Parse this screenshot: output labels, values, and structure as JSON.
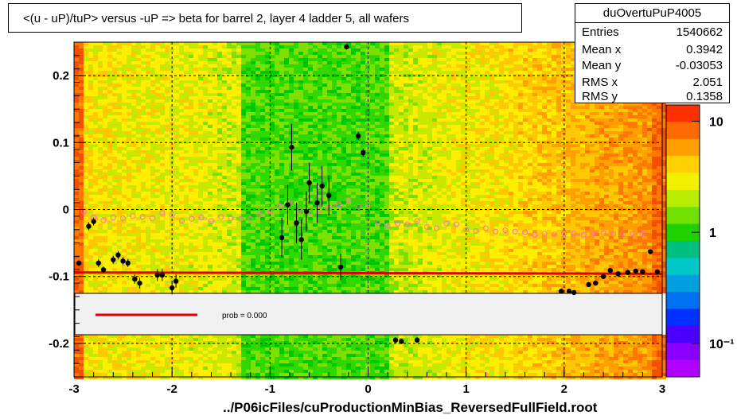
{
  "title": "<(u - uP)/tuP> versus  -uP => beta for barrel 2, layer 4 ladder 5, all wafers",
  "stats": {
    "name": "duOvertuPuP4005",
    "rows": [
      {
        "label": "Entries",
        "value": "1540662"
      },
      {
        "label": "Mean x",
        "value": "0.3942"
      },
      {
        "label": "Mean y",
        "value": "-0.03053"
      },
      {
        "label": "RMS x",
        "value": "2.051"
      },
      {
        "label": "RMS y",
        "value": "0.1358"
      }
    ]
  },
  "legend": {
    "fit_label": "prob = 0.000",
    "fit_color": "#e00000"
  },
  "x_title": "../P06icFiles/cuProductionMinBias_ReversedFullField.root",
  "chart_data": {
    "type": "heatmap",
    "xlim": [
      -3,
      3
    ],
    "ylim": [
      -0.25,
      0.25
    ],
    "x_ticks": [
      -3,
      -2,
      -1,
      0,
      1,
      2,
      3
    ],
    "x_tick_labels": [
      "-3",
      "-2",
      "-1",
      "0",
      "1",
      "2",
      "3"
    ],
    "y_ticks": [
      -0.2,
      -0.1,
      0,
      0.1,
      0.2
    ],
    "y_tick_labels": [
      "-0.2",
      "-0.1",
      "0",
      "0.1",
      "0.2"
    ],
    "grid": true,
    "colorbar": {
      "scale": "log",
      "ticks": [
        {
          "value": 10,
          "label": "10"
        },
        {
          "value": 1,
          "label": "1"
        },
        {
          "value": 0.1,
          "label": "10⁻¹"
        }
      ]
    },
    "fit_line": {
      "x": [
        -3,
        3
      ],
      "y": [
        -0.094,
        -0.096
      ],
      "color": "#e00000"
    },
    "profile_open": {
      "color": "#ff66cc",
      "x": [
        -2.9,
        -2.8,
        -2.7,
        -2.6,
        -2.5,
        -2.4,
        -2.3,
        -2.2,
        -2.1,
        -2.0,
        -1.9,
        -1.8,
        -1.7,
        -1.6,
        -1.5,
        -1.4,
        -1.3,
        -1.2,
        -1.1,
        -1.0,
        -0.9,
        -0.8,
        -0.7,
        -0.6,
        -0.5,
        -0.4,
        -0.3,
        -0.2,
        -0.1,
        0.0,
        0.1,
        0.2,
        0.3,
        0.4,
        0.5,
        0.6,
        0.7,
        0.8,
        0.9,
        1.0,
        1.1,
        1.2,
        1.3,
        1.4,
        1.5,
        1.6,
        1.7,
        1.8,
        1.9,
        2.0,
        2.1,
        2.2,
        2.3,
        2.4,
        2.5,
        2.6,
        2.7,
        2.8
      ],
      "y": [
        -0.003,
        -0.012,
        -0.016,
        -0.012,
        -0.013,
        -0.01,
        -0.011,
        -0.013,
        -0.005,
        -0.008,
        -0.017,
        -0.014,
        -0.012,
        -0.017,
        -0.011,
        -0.013,
        -0.014,
        -0.014,
        -0.007,
        -0.003,
        0.005,
        0.01,
        -0.002,
        -0.005,
        0.0,
        0.003,
        0.007,
        0.014,
        0.004,
        0.009,
        -0.02,
        -0.024,
        -0.021,
        -0.022,
        -0.017,
        -0.026,
        -0.028,
        -0.021,
        -0.022,
        -0.03,
        -0.032,
        -0.028,
        -0.033,
        -0.031,
        -0.033,
        -0.034,
        -0.038,
        -0.036,
        -0.037,
        -0.036,
        -0.036,
        -0.038,
        -0.036,
        -0.035,
        -0.037,
        -0.036,
        -0.036,
        -0.036
      ]
    },
    "profile_filled": {
      "color": "#000000",
      "points": [
        {
          "x": -2.95,
          "y": -0.08,
          "err": 0.004
        },
        {
          "x": -2.85,
          "y": -0.025,
          "err": 0.006
        },
        {
          "x": -2.8,
          "y": -0.018,
          "err": 0.006
        },
        {
          "x": -2.75,
          "y": -0.08,
          "err": 0.006
        },
        {
          "x": -2.7,
          "y": -0.09,
          "err": 0.005
        },
        {
          "x": -2.6,
          "y": -0.075,
          "err": 0.006
        },
        {
          "x": -2.55,
          "y": -0.068,
          "err": 0.006
        },
        {
          "x": -2.5,
          "y": -0.077,
          "err": 0.006
        },
        {
          "x": -2.45,
          "y": -0.08,
          "err": 0.006
        },
        {
          "x": -2.38,
          "y": -0.104,
          "err": 0.007
        },
        {
          "x": -2.33,
          "y": -0.11,
          "err": 0.008
        },
        {
          "x": -2.15,
          "y": -0.098,
          "err": 0.009
        },
        {
          "x": -2.1,
          "y": -0.098,
          "err": 0.009
        },
        {
          "x": -2.0,
          "y": -0.117,
          "err": 0.01
        },
        {
          "x": -1.96,
          "y": -0.107,
          "err": 0.01
        },
        {
          "x": -0.88,
          "y": -0.042,
          "err": 0.03
        },
        {
          "x": -0.82,
          "y": 0.007,
          "err": 0.03
        },
        {
          "x": -0.78,
          "y": 0.093,
          "err": 0.035
        },
        {
          "x": -0.73,
          "y": -0.02,
          "err": 0.03
        },
        {
          "x": -0.68,
          "y": -0.045,
          "err": 0.03
        },
        {
          "x": -0.63,
          "y": -0.003,
          "err": 0.03
        },
        {
          "x": -0.6,
          "y": 0.04,
          "err": 0.03
        },
        {
          "x": -0.52,
          "y": 0.01,
          "err": 0.03
        },
        {
          "x": -0.47,
          "y": 0.035,
          "err": 0.03
        },
        {
          "x": -0.4,
          "y": 0.021,
          "err": 0.03
        },
        {
          "x": -0.28,
          "y": -0.086,
          "err": 0.02
        },
        {
          "x": -0.22,
          "y": 0.243,
          "err": 0.004
        },
        {
          "x": -0.1,
          "y": 0.11,
          "err": 0.006
        },
        {
          "x": -0.05,
          "y": 0.085,
          "err": 0.006
        },
        {
          "x": 0.28,
          "y": -0.195,
          "err": 0.004
        },
        {
          "x": 0.34,
          "y": -0.197,
          "err": 0.004
        },
        {
          "x": 0.5,
          "y": -0.195,
          "err": 0.004
        },
        {
          "x": 1.97,
          "y": -0.122,
          "err": 0.003
        },
        {
          "x": 2.05,
          "y": -0.122,
          "err": 0.003
        },
        {
          "x": 2.1,
          "y": -0.124,
          "err": 0.003
        },
        {
          "x": 2.25,
          "y": -0.112,
          "err": 0.003
        },
        {
          "x": 2.32,
          "y": -0.11,
          "err": 0.003
        },
        {
          "x": 2.4,
          "y": -0.1,
          "err": 0.003
        },
        {
          "x": 2.47,
          "y": -0.091,
          "err": 0.003
        },
        {
          "x": 2.55,
          "y": -0.096,
          "err": 0.003
        },
        {
          "x": 2.65,
          "y": -0.094,
          "err": 0.003
        },
        {
          "x": 2.73,
          "y": -0.092,
          "err": 0.003
        },
        {
          "x": 2.8,
          "y": -0.093,
          "err": 0.003
        },
        {
          "x": 2.88,
          "y": -0.063,
          "err": 0.003
        },
        {
          "x": 2.95,
          "y": -0.093,
          "err": 0.003
        }
      ]
    }
  }
}
